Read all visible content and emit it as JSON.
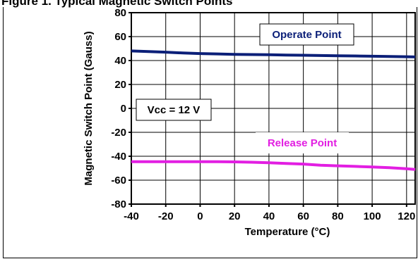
{
  "page_title": "Figure 1. Typical Magnetic Switch Points",
  "chart_data": {
    "type": "line",
    "title": "",
    "xlabel": "Temperature (°C)",
    "ylabel": "Magnetic Switch Point (Gauss)",
    "xlim": [
      -40,
      125
    ],
    "ylim": [
      -80,
      80
    ],
    "x_ticks": [
      -40,
      -20,
      0,
      20,
      40,
      60,
      80,
      100,
      120
    ],
    "y_ticks": [
      80,
      60,
      40,
      20,
      0,
      -20,
      -40,
      -60,
      -80
    ],
    "grid": true,
    "series": [
      {
        "name": "Operate Point",
        "color": "#0b1f78",
        "x": [
          -40,
          -30,
          -20,
          -10,
          0,
          10,
          20,
          30,
          40,
          50,
          60,
          70,
          80,
          90,
          100,
          110,
          120,
          125
        ],
        "y": [
          48,
          47.5,
          47,
          46.3,
          45.8,
          45.5,
          45.2,
          45,
          44.8,
          44.6,
          44.4,
          44.2,
          44,
          43.8,
          43.6,
          43.4,
          43.2,
          43
        ]
      },
      {
        "name": "Release Point",
        "color": "#e21ee2",
        "x": [
          -40,
          -30,
          -20,
          -10,
          0,
          10,
          20,
          30,
          40,
          50,
          60,
          70,
          80,
          90,
          100,
          110,
          120,
          125
        ],
        "y": [
          -44.5,
          -44.5,
          -44.5,
          -44.5,
          -44.5,
          -44.5,
          -44.7,
          -45,
          -45.5,
          -46,
          -46.5,
          -47.5,
          -48,
          -48.5,
          -49,
          -49.5,
          -50.5,
          -51
        ]
      }
    ],
    "annotations": [
      {
        "text": "Operate Point",
        "color": "#0b1f78"
      },
      {
        "text": "Release Point",
        "color": "#e21ee2"
      },
      {
        "text": "Vcc = 12 V",
        "color": "#000000"
      }
    ]
  }
}
